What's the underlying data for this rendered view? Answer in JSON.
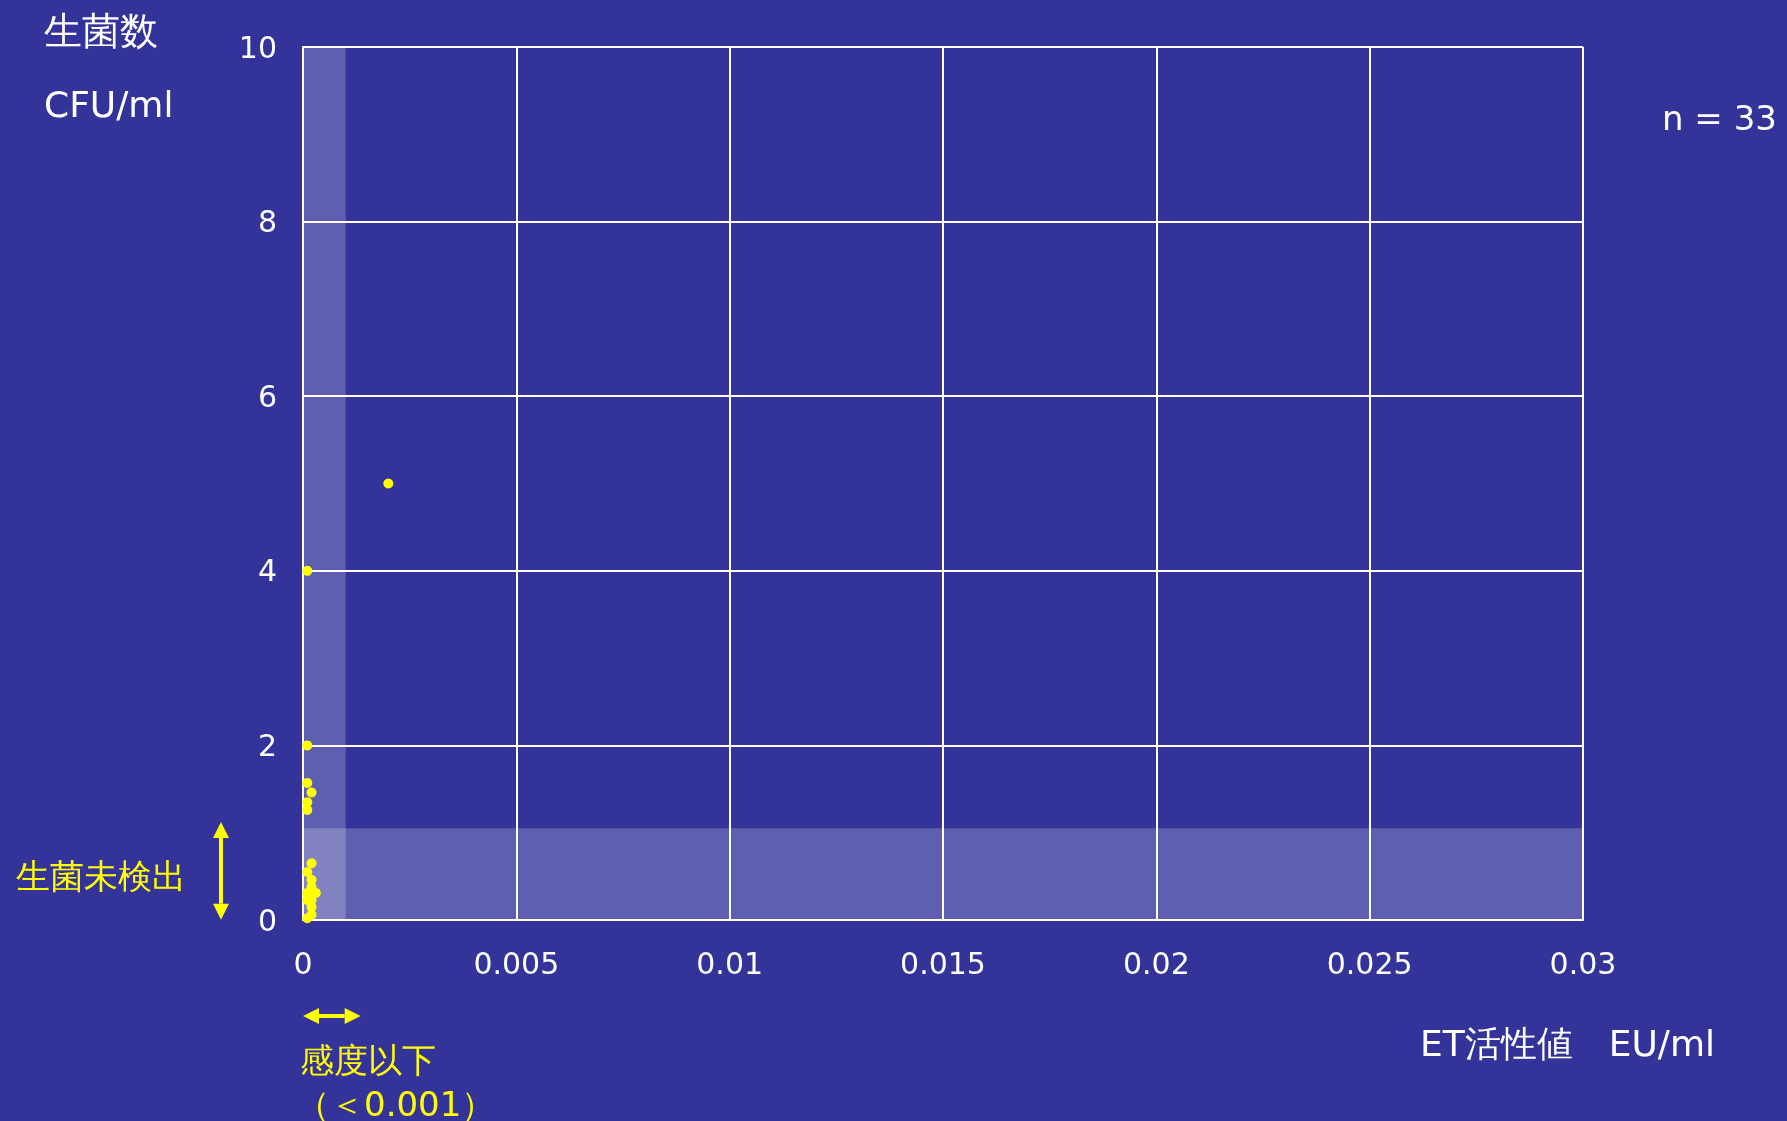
{
  "chart_data": {
    "type": "scatter",
    "title": "生菌数",
    "ylabel": "CFU/ml",
    "xlabel": "ET活性値　EU/ml",
    "annotations": [
      "n = 33",
      "生菌未検出",
      "感度以下",
      "（＜0.001）"
    ],
    "series": [
      {
        "color": "#ffff00",
        "x": [
          0.002,
          0.0001,
          0.0001,
          0.0001,
          0.0002,
          0.0001,
          0.0001,
          0.0002,
          0.0001,
          0.0002,
          0.0001,
          0.0002,
          0.0003,
          0.0001,
          0.0002,
          0.0002,
          0.0001,
          0.0002
        ],
        "values": [
          5,
          4,
          2,
          1.57,
          1.46,
          1.35,
          1.26,
          0.65,
          0.55,
          0.46,
          0.31,
          0.38,
          0.31,
          0.23,
          0.15,
          0.23,
          0.02,
          0.06
        ]
      }
    ],
    "xlim": [
      0,
      0.03
    ],
    "xticks": [
      0,
      0.005,
      0.01,
      0.015,
      0.02,
      0.025,
      0.03
    ],
    "ylim": [
      0,
      10
    ],
    "yticks": [
      0,
      2,
      4,
      6,
      8,
      10
    ],
    "bands": [
      {
        "axis": "x",
        "from": 0,
        "to": 0.001,
        "color": "#ffffff"
      },
      {
        "axis": "y",
        "from": 0,
        "to": 1.05,
        "color": "#ffffff"
      }
    ],
    "grid": true,
    "marker": "circle"
  }
}
